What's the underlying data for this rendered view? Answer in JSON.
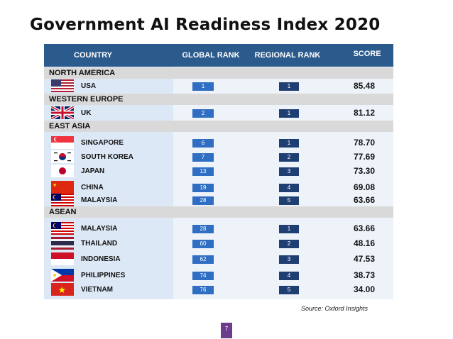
{
  "title": "Government AI Readiness Index 2020",
  "columns": {
    "country": "COUNTRY",
    "global_rank": "GLOBAL RANK",
    "regional_rank": "REGIONAL RANK",
    "score": "SCORE"
  },
  "regions": [
    {
      "name": "NORTH AMERICA",
      "rows": [
        {
          "country": "USA",
          "flag": "usa-flag-icon",
          "global": "1",
          "regional": "1",
          "score": "85.48"
        }
      ]
    },
    {
      "name": "WESTERN EUROPE",
      "rows": [
        {
          "country": "UK",
          "flag": "uk-flag-icon",
          "global": "2",
          "regional": "1",
          "score": "81.12"
        }
      ]
    },
    {
      "name": "EAST ASIA",
      "rows": [
        {
          "country": "SINGAPORE",
          "flag": "singapore-flag-icon",
          "global": "6",
          "regional": "1",
          "score": "78.70"
        },
        {
          "country": "SOUTH KOREA",
          "flag": "south-korea-flag-icon",
          "global": "7",
          "regional": "2",
          "score": "77.69"
        },
        {
          "country": "JAPAN",
          "flag": "japan-flag-icon",
          "global": "13",
          "regional": "3",
          "score": "73.30"
        },
        {
          "country": "CHINA",
          "flag": "china-flag-icon",
          "global": "19",
          "regional": "4",
          "score": "69.08"
        },
        {
          "country": "MALAYSIA",
          "flag": "malaysia-flag-icon",
          "global": "28",
          "regional": "5",
          "score": "63.66"
        }
      ]
    },
    {
      "name": "ASEAN",
      "rows": [
        {
          "country": "MALAYSIA",
          "flag": "malaysia-flag-icon",
          "global": "28",
          "regional": "1",
          "score": "63.66"
        },
        {
          "country": "THAILAND",
          "flag": "thailand-flag-icon",
          "global": "60",
          "regional": "2",
          "score": "48.16"
        },
        {
          "country": "INDONESIA",
          "flag": "indonesia-flag-icon",
          "global": "62",
          "regional": "3",
          "score": "47.53"
        },
        {
          "country": "PHILIPPINES",
          "flag": "philippines-flag-icon",
          "global": "74",
          "regional": "4",
          "score": "38.73"
        },
        {
          "country": "VIETNAM",
          "flag": "vietnam-flag-icon",
          "global": "76",
          "regional": "5",
          "score": "34.00"
        }
      ]
    }
  ],
  "source": "Source: Oxford Insights",
  "page_number": "7",
  "colors": {
    "header_bg": "#2b5a8c",
    "global_badge": "#2f6ec2",
    "regional_badge": "#1f3f73",
    "region_band": "#d9d9d9",
    "page_badge": "#6b3d8c"
  }
}
